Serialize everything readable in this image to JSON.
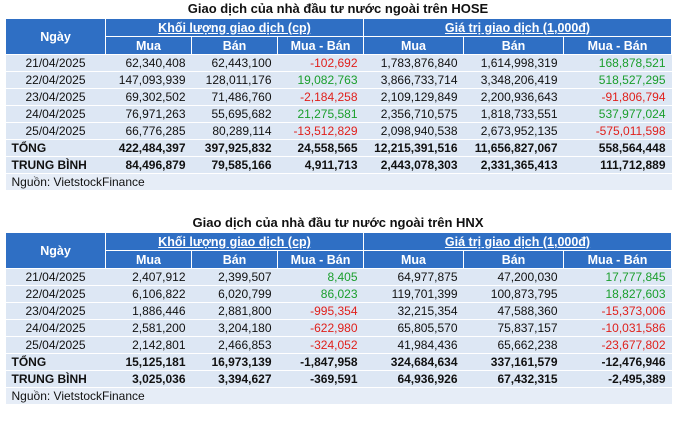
{
  "tables": [
    {
      "title": "Giao dịch của nhà đầu tư nước ngoài trên HOSE",
      "header": {
        "date": "Ngày",
        "groups": [
          "Khối lượng giao dịch (cp)",
          "Giá trị giao dịch (1,000đ)"
        ],
        "columns": [
          "Mua",
          "Bán",
          "Mua - Bán",
          "Mua",
          "Bán",
          "Mua - Bán"
        ]
      },
      "rows": [
        [
          "21/04/2025",
          "62,340,408",
          "62,443,100",
          "-102,692",
          "1,783,876,840",
          "1,614,998,319",
          "168,878,521"
        ],
        [
          "22/04/2025",
          "147,093,939",
          "128,011,176",
          "19,082,763",
          "3,866,733,714",
          "3,348,206,419",
          "518,527,295"
        ],
        [
          "23/04/2025",
          "69,302,502",
          "71,486,760",
          "-2,184,258",
          "2,109,129,849",
          "2,200,936,643",
          "-91,806,794"
        ],
        [
          "24/04/2025",
          "76,971,263",
          "55,695,682",
          "21,275,581",
          "2,356,710,575",
          "1,818,733,551",
          "537,977,024"
        ],
        [
          "25/04/2025",
          "66,776,285",
          "80,289,114",
          "-13,512,829",
          "2,098,940,538",
          "2,673,952,135",
          "-575,011,598"
        ]
      ],
      "summary_rows": [
        [
          "TỔNG",
          "422,484,397",
          "397,925,832",
          "24,558,565",
          "12,215,391,516",
          "11,656,827,067",
          "558,564,448"
        ],
        [
          "TRUNG BÌNH",
          "84,496,879",
          "79,585,166",
          "4,911,713",
          "2,443,078,303",
          "2,331,365,413",
          "111,712,889"
        ]
      ],
      "source": "Nguồn: VietstockFinance"
    },
    {
      "title": "Giao dịch của nhà đầu tư nước ngoài trên HNX",
      "header": {
        "date": "Ngày",
        "groups": [
          "Khối lượng giao dịch (cp)",
          "Giá trị giao dịch (1,000đ)"
        ],
        "columns": [
          "Mua",
          "Bán",
          "Mua - Bán",
          "Mua",
          "Bán",
          "Mua - Bán"
        ]
      },
      "rows": [
        [
          "21/04/2025",
          "2,407,912",
          "2,399,507",
          "8,405",
          "64,977,875",
          "47,200,030",
          "17,777,845"
        ],
        [
          "22/04/2025",
          "6,106,822",
          "6,020,799",
          "86,023",
          "119,701,399",
          "100,873,795",
          "18,827,603"
        ],
        [
          "23/04/2025",
          "1,886,446",
          "2,881,800",
          "-995,354",
          "32,215,354",
          "47,588,360",
          "-15,373,006"
        ],
        [
          "24/04/2025",
          "2,581,200",
          "3,204,180",
          "-622,980",
          "65,805,570",
          "75,837,157",
          "-10,031,586"
        ],
        [
          "25/04/2025",
          "2,142,801",
          "2,466,853",
          "-324,052",
          "41,984,436",
          "65,662,238",
          "-23,677,802"
        ]
      ],
      "summary_rows": [
        [
          "TỔNG",
          "15,125,181",
          "16,973,139",
          "-1,847,958",
          "324,684,634",
          "337,161,579",
          "-12,476,946"
        ],
        [
          "TRUNG BÌNH",
          "3,025,036",
          "3,394,627",
          "-369,591",
          "64,936,926",
          "67,432,315",
          "-2,495,389"
        ]
      ],
      "source": "Nguồn: VietstockFinance"
    }
  ],
  "positive_color": "#1a9e2c",
  "negative_color": "#e0201b"
}
